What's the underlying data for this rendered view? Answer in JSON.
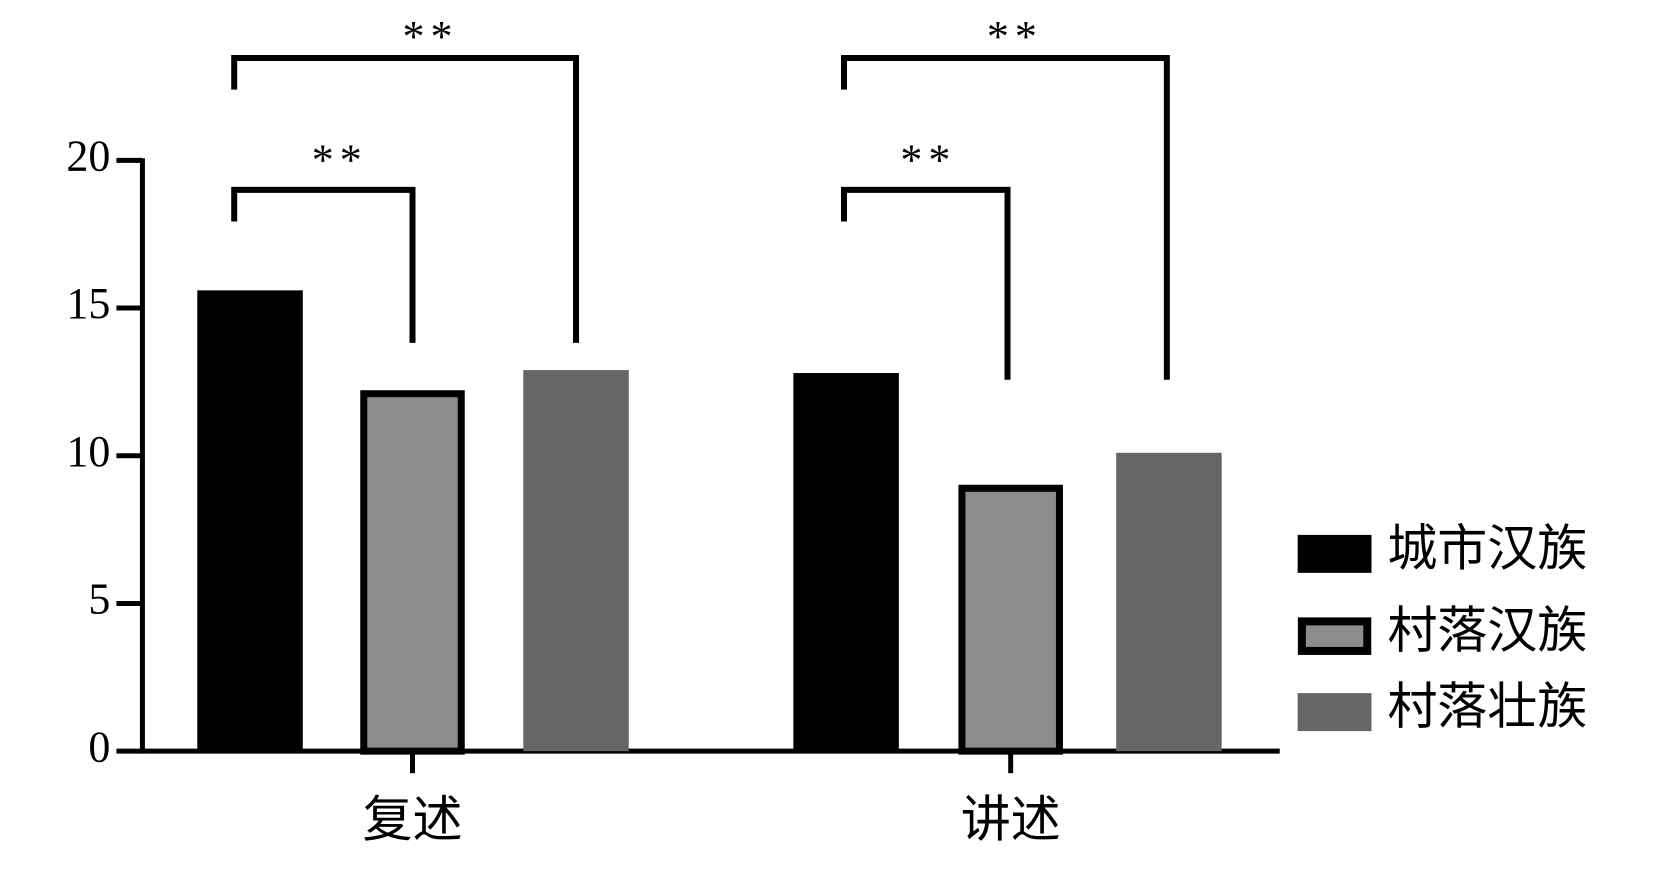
{
  "chart_data": {
    "type": "bar",
    "categories": [
      "复述",
      "讲述"
    ],
    "series": [
      {
        "name": "城市汉族",
        "color": "#000000",
        "values": [
          15.6,
          12.8
        ]
      },
      {
        "name": "村落汉族",
        "color": "#8c8c8c",
        "values": [
          12.1,
          8.9
        ]
      },
      {
        "name": "村落壮族",
        "color": "#666666",
        "values": [
          12.9,
          10.1
        ]
      }
    ],
    "ylim": [
      0,
      20
    ],
    "yticks": [
      0,
      5,
      10,
      15,
      20
    ],
    "annotations": [
      "**",
      "**",
      "**",
      "**"
    ]
  }
}
